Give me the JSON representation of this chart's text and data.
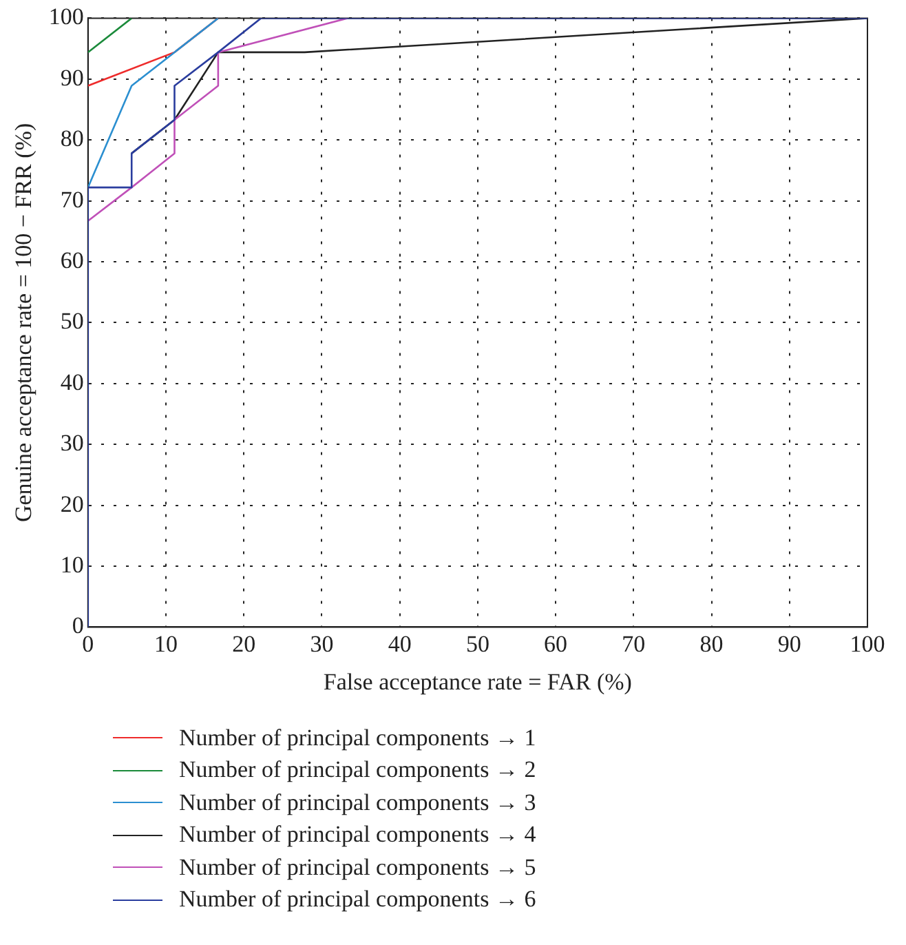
{
  "chart_data": {
    "type": "line",
    "xlabel": "False acceptance rate = FAR (%)",
    "ylabel": "Genuine acceptance rate = 100 − FRR (%)",
    "xlim": [
      0,
      100
    ],
    "ylim": [
      0,
      100
    ],
    "xticks": [
      0,
      10,
      20,
      30,
      40,
      50,
      60,
      70,
      80,
      90,
      100
    ],
    "yticks": [
      0,
      10,
      20,
      30,
      40,
      50,
      60,
      70,
      80,
      90,
      100
    ],
    "grid": true,
    "legend": "bottom",
    "line_style": "solid",
    "marker": "none",
    "series": [
      {
        "name": "Number of principal components → 1",
        "color": "#ee2b2b",
        "x": [
          0,
          11.1,
          16.7
        ],
        "values": [
          88.9,
          94.4,
          100
        ]
      },
      {
        "name": "Number of principal components → 2",
        "color": "#1a8a3a",
        "x": [
          0,
          5.6
        ],
        "values": [
          94.4,
          100
        ]
      },
      {
        "name": "Number of principal components → 3",
        "color": "#2b8fd0",
        "x": [
          0,
          5.6,
          11.1,
          16.7
        ],
        "values": [
          72.2,
          88.9,
          94.4,
          100
        ]
      },
      {
        "name": "Number of principal components → 4",
        "color": "#222222",
        "x": [
          5.6,
          11.1,
          16.7,
          27.8,
          100
        ],
        "values": [
          77.8,
          83.3,
          94.4,
          94.4,
          100
        ]
      },
      {
        "name": "Number of principal components → 5",
        "color": "#c050b8",
        "x": [
          0,
          5.6,
          11.1,
          11.1,
          16.7,
          16.7,
          33.3
        ],
        "values": [
          66.7,
          72.2,
          77.8,
          83.3,
          88.9,
          94.4,
          100
        ]
      },
      {
        "name": "Number of principal components → 6",
        "color": "#2a3d9e",
        "x": [
          0,
          0,
          5.6,
          5.6,
          11.1,
          11.1,
          16.7,
          22.2,
          100
        ],
        "values": [
          0,
          72.2,
          72.2,
          77.8,
          83.3,
          88.9,
          94.4,
          100,
          100
        ]
      }
    ]
  }
}
